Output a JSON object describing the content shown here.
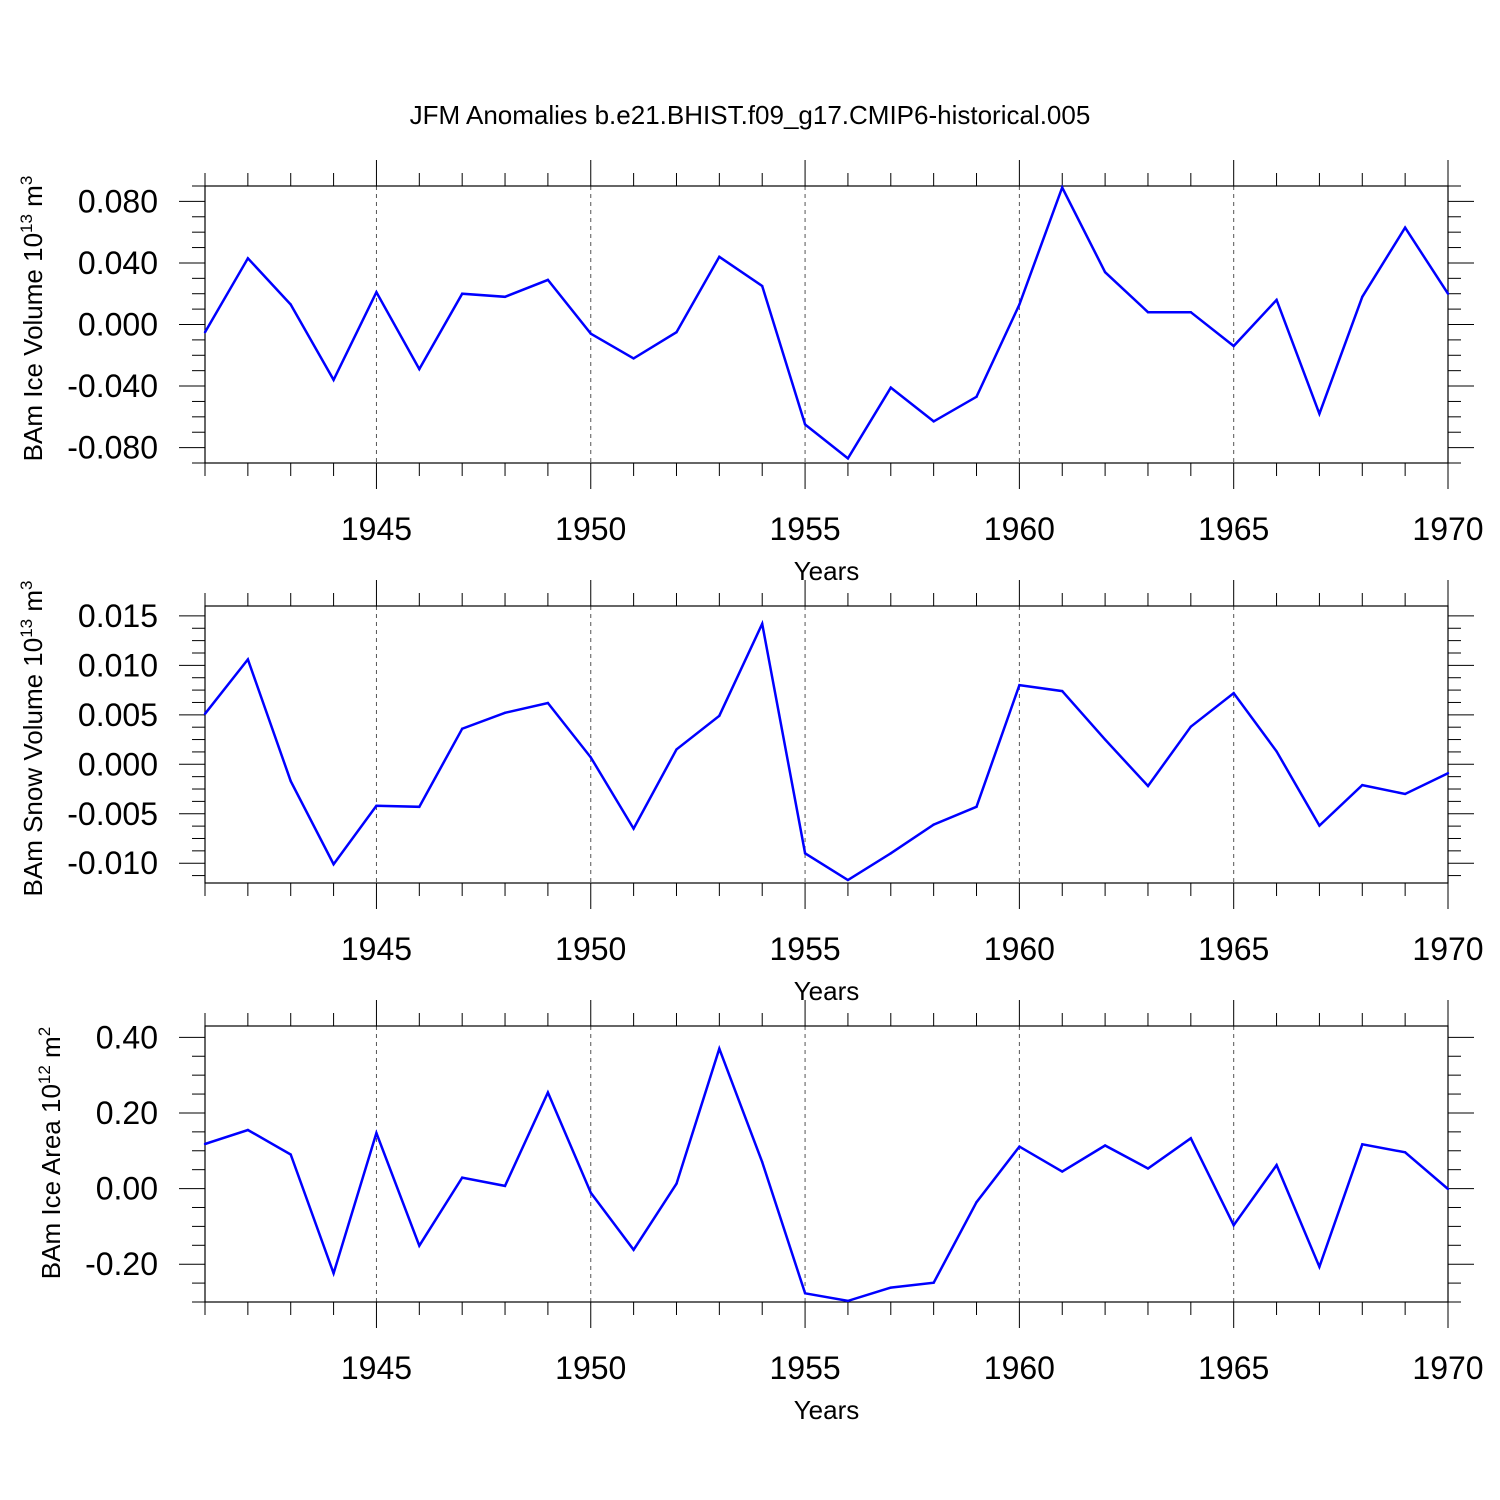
{
  "title": "JFM Anomalies b.e21.BHIST.f09_g17.CMIP6-historical.005",
  "line_color": "#0000ff",
  "chart_data": [
    {
      "type": "line",
      "ylabel_main": "BAm Ice Volume 10",
      "ylabel_exp": "13",
      "ylabel_unit": " m",
      "ylabel_unit_exp": "3",
      "xlabel": "Years",
      "xlim": [
        1941,
        1970
      ],
      "ylim": [
        -0.09,
        0.09
      ],
      "yticks": [
        -0.08,
        -0.04,
        0.0,
        0.04,
        0.08
      ],
      "ytick_labels": [
        "-0.080",
        "-0.040",
        "0.000",
        "0.040",
        "0.080"
      ],
      "xticks": [
        1945,
        1950,
        1955,
        1960,
        1965,
        1970
      ],
      "xtick_labels": [
        "1945",
        "1950",
        "1955",
        "1960",
        "1965",
        "1970"
      ],
      "x": [
        1941,
        1942,
        1943,
        1944,
        1945,
        1946,
        1947,
        1948,
        1949,
        1950,
        1951,
        1952,
        1953,
        1954,
        1955,
        1956,
        1957,
        1958,
        1959,
        1960,
        1961,
        1962,
        1963,
        1964,
        1965,
        1966,
        1967,
        1968,
        1969,
        1970
      ],
      "values": [
        -0.005,
        0.043,
        0.013,
        -0.036,
        0.021,
        -0.029,
        0.02,
        0.018,
        0.029,
        -0.006,
        -0.022,
        -0.005,
        0.044,
        0.025,
        -0.065,
        -0.087,
        -0.041,
        -0.063,
        -0.047,
        0.013,
        0.089,
        0.034,
        0.008,
        0.008,
        -0.014,
        0.016,
        -0.058,
        0.018,
        0.063,
        0.02
      ]
    },
    {
      "type": "line",
      "ylabel_main": "BAm Snow Volume 10",
      "ylabel_exp": "13",
      "ylabel_unit": " m",
      "ylabel_unit_exp": "3",
      "xlabel": "Years",
      "xlim": [
        1941,
        1970
      ],
      "ylim": [
        -0.012,
        0.016
      ],
      "yticks": [
        -0.01,
        -0.005,
        0.0,
        0.005,
        0.01,
        0.015
      ],
      "ytick_labels": [
        "-0.010",
        "-0.005",
        "0.000",
        "0.005",
        "0.010",
        "0.015"
      ],
      "xticks": [
        1945,
        1950,
        1955,
        1960,
        1965,
        1970
      ],
      "xtick_labels": [
        "1945",
        "1950",
        "1955",
        "1960",
        "1965",
        "1970"
      ],
      "x": [
        1941,
        1942,
        1943,
        1944,
        1945,
        1946,
        1947,
        1948,
        1949,
        1950,
        1951,
        1952,
        1953,
        1954,
        1955,
        1956,
        1957,
        1958,
        1959,
        1960,
        1961,
        1962,
        1963,
        1964,
        1965,
        1966,
        1967,
        1968,
        1969,
        1970
      ],
      "values": [
        0.0051,
        0.0106,
        -0.0017,
        -0.0101,
        -0.0042,
        -0.0043,
        0.0036,
        0.0052,
        0.0062,
        0.0007,
        -0.0065,
        0.0015,
        0.0049,
        0.0142,
        -0.009,
        -0.0117,
        -0.009,
        -0.0061,
        -0.0043,
        0.008,
        0.0074,
        0.0025,
        -0.0022,
        0.0038,
        0.0072,
        0.0013,
        -0.0062,
        -0.0021,
        -0.003,
        -0.0009
      ]
    },
    {
      "type": "line",
      "ylabel_main": "BAm Ice Area 10",
      "ylabel_exp": "12",
      "ylabel_unit": " m",
      "ylabel_unit_exp": "2",
      "xlabel": "Years",
      "xlim": [
        1941,
        1970
      ],
      "ylim": [
        -0.3,
        0.43
      ],
      "yticks": [
        -0.2,
        0.0,
        0.2,
        0.4
      ],
      "ytick_labels": [
        "-0.20",
        "0.00",
        "0.20",
        "0.40"
      ],
      "xticks": [
        1945,
        1950,
        1955,
        1960,
        1965,
        1970
      ],
      "xtick_labels": [
        "1945",
        "1950",
        "1955",
        "1960",
        "1965",
        "1970"
      ],
      "x": [
        1941,
        1942,
        1943,
        1944,
        1945,
        1946,
        1947,
        1948,
        1949,
        1950,
        1951,
        1952,
        1953,
        1954,
        1955,
        1956,
        1957,
        1958,
        1959,
        1960,
        1961,
        1962,
        1963,
        1964,
        1965,
        1966,
        1967,
        1968,
        1969,
        1970
      ],
      "values": [
        0.118,
        0.155,
        0.09,
        -0.224,
        0.147,
        -0.151,
        0.029,
        0.007,
        0.254,
        -0.011,
        -0.162,
        0.013,
        0.37,
        0.07,
        -0.277,
        -0.297,
        -0.262,
        -0.249,
        -0.036,
        0.111,
        0.045,
        0.114,
        0.053,
        0.133,
        -0.097,
        0.062,
        -0.207,
        0.117,
        0.096,
        -0.001
      ]
    }
  ]
}
